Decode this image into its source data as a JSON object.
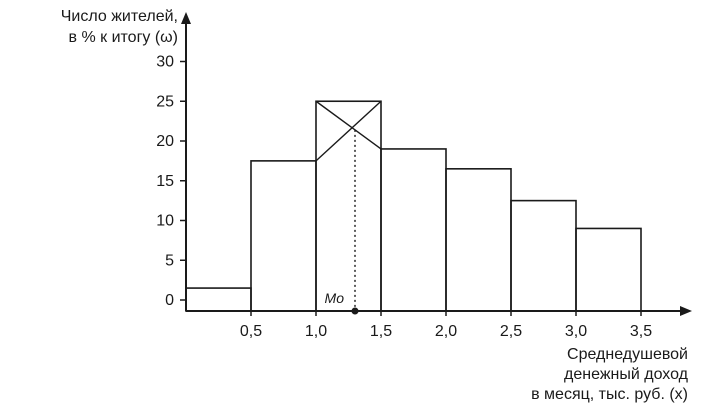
{
  "chart_data": {
    "type": "bar",
    "ylabel_lines": [
      "Число жителей,",
      "в % к итогу (ω)"
    ],
    "xlabel_lines": [
      "Среднедушевой",
      "денежный доход",
      "в месяц, тыс. руб. (x)"
    ],
    "x_ticks": [
      {
        "value": 0.5,
        "label": "0,5"
      },
      {
        "value": 1.0,
        "label": "1,0"
      },
      {
        "value": 1.5,
        "label": "1,5"
      },
      {
        "value": 2.0,
        "label": "2,0"
      },
      {
        "value": 2.5,
        "label": "2,5"
      },
      {
        "value": 3.0,
        "label": "3,0"
      },
      {
        "value": 3.5,
        "label": "3,5"
      }
    ],
    "y_ticks": [
      0,
      5,
      10,
      15,
      20,
      25,
      30
    ],
    "xlim": [
      0,
      3.9
    ],
    "ylim": [
      -1.5,
      35.5
    ],
    "bins": [
      {
        "from": 0.0,
        "to": 0.5,
        "value": 1.5
      },
      {
        "from": 0.5,
        "to": 1.0,
        "value": 17.5
      },
      {
        "from": 1.0,
        "to": 1.5,
        "value": 25.0
      },
      {
        "from": 1.5,
        "to": 2.0,
        "value": 19.0
      },
      {
        "from": 2.0,
        "to": 2.5,
        "value": 16.5
      },
      {
        "from": 2.5,
        "to": 3.0,
        "value": 12.5
      },
      {
        "from": 3.0,
        "to": 3.5,
        "value": 9.0
      }
    ],
    "mode": {
      "label": "Mo",
      "x": 1.3
    },
    "modal_bin_index": 2,
    "grid": false,
    "legend": "none"
  }
}
